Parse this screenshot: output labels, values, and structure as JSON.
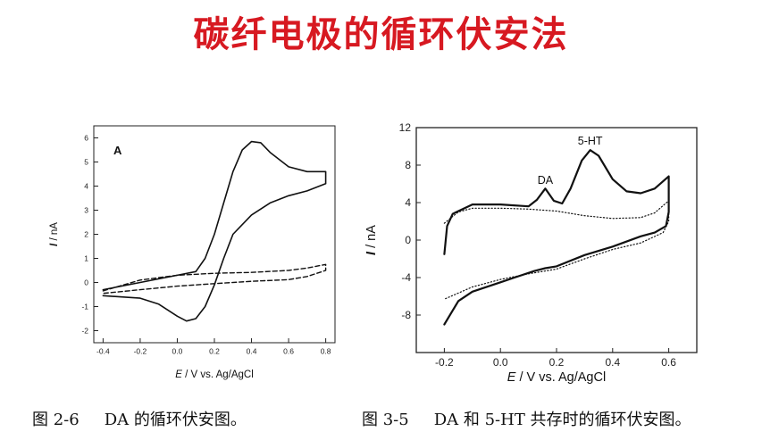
{
  "slide": {
    "title": "碳纤电极的循环伏安法"
  },
  "captions": [
    {
      "label": "图 2-6",
      "text": "DA 的循环伏安图。"
    },
    {
      "label": "图 3-5",
      "text": "DA 和 5-HT 共存时的循环伏安图。"
    }
  ],
  "chart_data": [
    {
      "type": "line",
      "panel_label": "A",
      "xlabel_italic": "E",
      "xlabel_rest": " / V vs. Ag/AgCl",
      "ylabel_italic": "I",
      "ylabel_rest": " / nA",
      "xlim": [
        -0.45,
        0.85
      ],
      "ylim": [
        -2.5,
        6.5
      ],
      "xticks": [
        -0.4,
        -0.2,
        0.0,
        0.2,
        0.4,
        0.6,
        0.8
      ],
      "xtick_labels": [
        "-0.4",
        "-0.2",
        "0.0",
        "0.2",
        "0.4",
        "0.6",
        "0.8"
      ],
      "yticks": [
        -2,
        -1,
        0,
        1,
        2,
        3,
        4,
        5,
        6
      ],
      "ytick_labels": [
        "-2",
        "-1",
        "0",
        "1",
        "2",
        "3",
        "4",
        "5",
        "6"
      ],
      "series": [
        {
          "style": "solid",
          "color": "#111111",
          "points": [
            [
              -0.4,
              -0.3
            ],
            [
              -0.2,
              0.0
            ],
            [
              0.0,
              0.3
            ],
            [
              0.1,
              0.45
            ],
            [
              0.15,
              1.0
            ],
            [
              0.2,
              2.0
            ],
            [
              0.25,
              3.3
            ],
            [
              0.3,
              4.6
            ],
            [
              0.35,
              5.5
            ],
            [
              0.4,
              5.85
            ],
            [
              0.45,
              5.8
            ],
            [
              0.5,
              5.4
            ],
            [
              0.6,
              4.8
            ],
            [
              0.7,
              4.6
            ],
            [
              0.8,
              4.6
            ],
            [
              0.8,
              4.1
            ],
            [
              0.7,
              3.8
            ],
            [
              0.6,
              3.6
            ],
            [
              0.5,
              3.3
            ],
            [
              0.4,
              2.8
            ],
            [
              0.3,
              2.0
            ],
            [
              0.25,
              1.0
            ],
            [
              0.2,
              -0.1
            ],
            [
              0.15,
              -1.0
            ],
            [
              0.1,
              -1.5
            ],
            [
              0.05,
              -1.6
            ],
            [
              0.0,
              -1.4
            ],
            [
              -0.1,
              -0.9
            ],
            [
              -0.2,
              -0.65
            ],
            [
              -0.3,
              -0.6
            ],
            [
              -0.4,
              -0.55
            ]
          ]
        },
        {
          "style": "dashed",
          "color": "#111111",
          "points": [
            [
              -0.4,
              -0.35
            ],
            [
              -0.2,
              0.1
            ],
            [
              0.0,
              0.3
            ],
            [
              0.2,
              0.38
            ],
            [
              0.4,
              0.42
            ],
            [
              0.6,
              0.5
            ],
            [
              0.7,
              0.6
            ],
            [
              0.8,
              0.75
            ],
            [
              0.8,
              0.5
            ],
            [
              0.7,
              0.25
            ],
            [
              0.6,
              0.12
            ],
            [
              0.4,
              0.05
            ],
            [
              0.2,
              -0.05
            ],
            [
              0.0,
              -0.15
            ],
            [
              -0.2,
              -0.3
            ],
            [
              -0.4,
              -0.45
            ]
          ]
        }
      ]
    },
    {
      "type": "line",
      "xlabel_italic": "E",
      "xlabel_rest": " / V vs. Ag/AgCl",
      "ylabel_italic": "I",
      "ylabel_rest": " / nA",
      "xlim": [
        -0.3,
        0.7
      ],
      "ylim": [
        -12,
        12
      ],
      "xticks": [
        -0.2,
        0.0,
        0.2,
        0.4,
        0.6
      ],
      "xtick_labels": [
        "-0.2",
        "0.0",
        "0.2",
        "0.4",
        "0.6"
      ],
      "yticks": [
        -8,
        -4,
        0,
        4,
        8,
        12
      ],
      "ytick_labels": [
        "-8",
        "-4",
        "0",
        "4",
        "8",
        "12"
      ],
      "annotations": [
        {
          "text": "DA",
          "x": 0.16,
          "y": 6.0
        },
        {
          "text": "5-HT",
          "x": 0.32,
          "y": 10.2
        }
      ],
      "series": [
        {
          "style": "solid",
          "color": "#111111",
          "points": [
            [
              -0.2,
              -1.5
            ],
            [
              -0.19,
              1.5
            ],
            [
              -0.17,
              2.8
            ],
            [
              -0.1,
              3.8
            ],
            [
              0.0,
              3.8
            ],
            [
              0.1,
              3.6
            ],
            [
              0.13,
              4.3
            ],
            [
              0.16,
              5.5
            ],
            [
              0.19,
              4.2
            ],
            [
              0.22,
              3.9
            ],
            [
              0.25,
              5.5
            ],
            [
              0.29,
              8.5
            ],
            [
              0.32,
              9.6
            ],
            [
              0.35,
              9.0
            ],
            [
              0.4,
              6.5
            ],
            [
              0.45,
              5.2
            ],
            [
              0.5,
              5.0
            ],
            [
              0.55,
              5.5
            ],
            [
              0.6,
              6.8
            ],
            [
              0.6,
              3.0
            ],
            [
              0.59,
              1.5
            ],
            [
              0.55,
              0.8
            ],
            [
              0.5,
              0.4
            ],
            [
              0.4,
              -0.7
            ],
            [
              0.3,
              -1.6
            ],
            [
              0.2,
              -2.8
            ],
            [
              0.16,
              -3.0
            ],
            [
              0.12,
              -3.3
            ],
            [
              0.05,
              -4.0
            ],
            [
              0.0,
              -4.5
            ],
            [
              -0.1,
              -5.5
            ],
            [
              -0.15,
              -6.5
            ],
            [
              -0.2,
              -9.0
            ]
          ]
        },
        {
          "style": "dotted",
          "color": "#111111",
          "points": [
            [
              -0.2,
              1.8
            ],
            [
              -0.15,
              3.0
            ],
            [
              -0.1,
              3.4
            ],
            [
              0.0,
              3.4
            ],
            [
              0.1,
              3.3
            ],
            [
              0.2,
              3.1
            ],
            [
              0.3,
              2.6
            ],
            [
              0.4,
              2.3
            ],
            [
              0.5,
              2.4
            ],
            [
              0.55,
              2.9
            ],
            [
              0.6,
              4.2
            ],
            [
              0.6,
              2.0
            ],
            [
              0.58,
              0.8
            ],
            [
              0.5,
              -0.3
            ],
            [
              0.4,
              -1.0
            ],
            [
              0.3,
              -2.0
            ],
            [
              0.2,
              -3.1
            ],
            [
              0.1,
              -3.6
            ],
            [
              0.0,
              -4.2
            ],
            [
              -0.1,
              -5.0
            ],
            [
              -0.2,
              -6.3
            ]
          ]
        }
      ]
    }
  ]
}
